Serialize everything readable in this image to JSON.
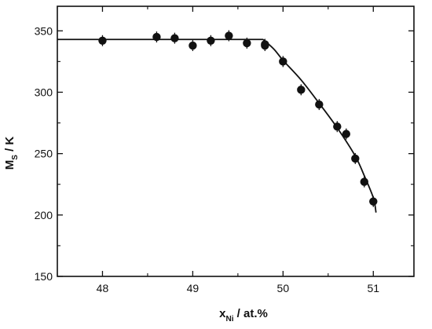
{
  "chart_data": {
    "type": "scatter",
    "xlabel": {
      "main": "x",
      "sub": "Ni",
      "suffix": " / at.%"
    },
    "ylabel": {
      "main": "M",
      "sub": "S",
      "suffix": " / K"
    },
    "xlim": [
      47.5,
      51.45
    ],
    "ylim": [
      150,
      370
    ],
    "x_ticks": [
      48,
      49,
      50,
      51
    ],
    "y_ticks": [
      150,
      200,
      250,
      300,
      350
    ],
    "x_tick_labels": [
      "48",
      "49",
      "50",
      "51"
    ],
    "y_tick_labels": [
      "150",
      "200",
      "250",
      "300",
      "350"
    ],
    "grid": false,
    "series": [
      {
        "kind": "points",
        "x": [
          48.0,
          48.6,
          48.8,
          49.0,
          49.2,
          49.4,
          49.6,
          49.8,
          49.8,
          50.0,
          50.2,
          50.4,
          50.6,
          50.7,
          50.8,
          50.9,
          51.0
        ],
        "y": [
          342,
          345,
          344,
          338,
          342,
          346,
          340,
          338,
          339,
          325,
          302,
          290,
          272,
          266,
          246,
          227,
          211
        ],
        "color": "#111111"
      },
      {
        "kind": "fit-line",
        "x": [
          47.5,
          49.78,
          49.9,
          50.0,
          50.2,
          50.4,
          50.6,
          50.8,
          50.9,
          51.0,
          51.03
        ],
        "y": [
          343,
          343,
          335,
          326,
          310,
          291,
          271,
          248,
          232,
          214,
          202
        ],
        "color": "#111111"
      }
    ]
  }
}
